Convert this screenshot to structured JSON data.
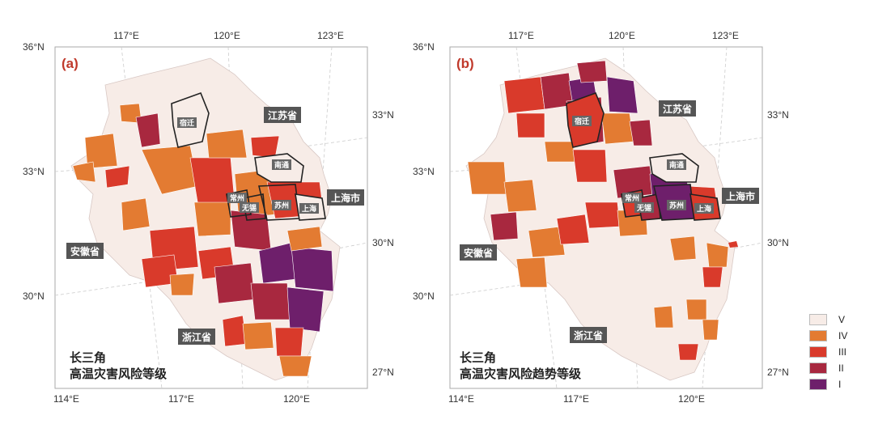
{
  "panels": [
    {
      "label": "(a)",
      "title_lines": [
        "长三角",
        "高温灾害风险等级"
      ],
      "lat_labels_left": [
        "36°N",
        "33°N",
        "30°N"
      ],
      "lat_labels_right": [
        "33°N",
        "30°N",
        "27°N"
      ],
      "lon_labels_top": [
        "117°E",
        "120°E",
        "123°E"
      ],
      "lon_labels_bottom": [
        "114°E",
        "117°E",
        "120°E"
      ],
      "provinces": [
        "江苏省",
        "上海市",
        "安徽省",
        "浙江省"
      ],
      "cities": [
        "宿迁",
        "南通",
        "常州",
        "无锡",
        "苏州",
        "上海"
      ]
    },
    {
      "label": "(b)",
      "title_lines": [
        "长三角",
        "高温灾害风险趋势等级"
      ],
      "lat_labels_left": [
        "36°N",
        "33°N",
        "30°N"
      ],
      "lat_labels_right": [
        "33°N",
        "30°N",
        "27°N"
      ],
      "lon_labels_top": [
        "117°E",
        "120°E",
        "123°E"
      ],
      "lon_labels_bottom": [
        "114°E",
        "117°E",
        "120°E"
      ],
      "provinces": [
        "江苏省",
        "上海市",
        "安徽省",
        "浙江省"
      ],
      "cities": [
        "宿迁",
        "南通",
        "常州",
        "无锡",
        "苏州",
        "上海"
      ]
    }
  ],
  "legend": [
    {
      "label": "V",
      "color": "#f7ece7"
    },
    {
      "label": "IV",
      "color": "#e37b32"
    },
    {
      "label": "III",
      "color": "#d93a2b"
    },
    {
      "label": "II",
      "color": "#a8283f"
    },
    {
      "label": "I",
      "color": "#6e1f6b"
    }
  ]
}
